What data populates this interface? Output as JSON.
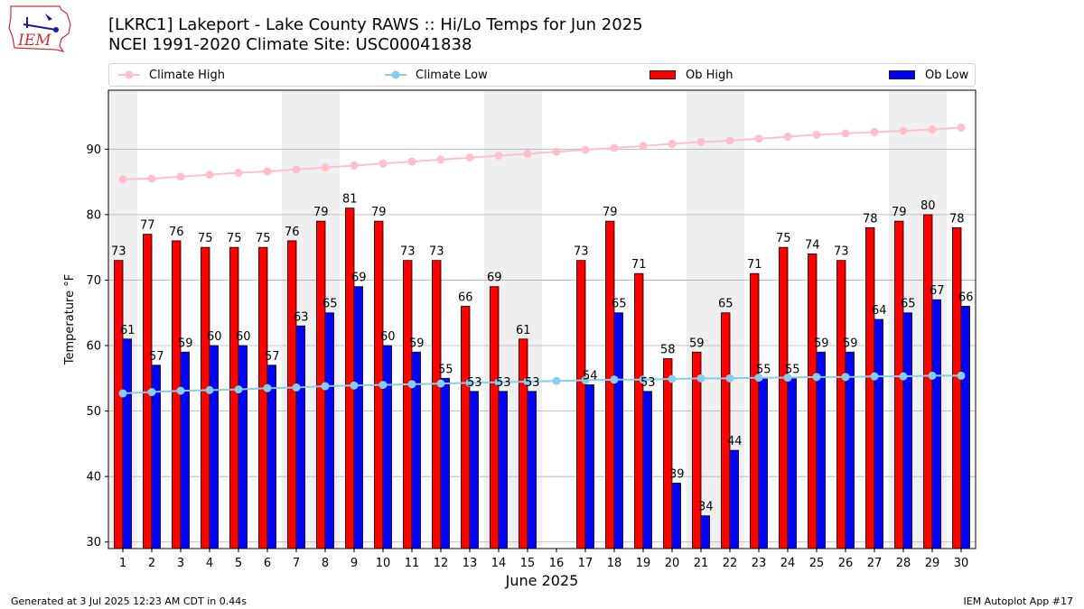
{
  "header": {
    "title_line1": "[LKRC1] Lakeport - Lake County RAWS :: Hi/Lo Temps for Jun 2025",
    "title_line2": "NCEI 1991-2020 Climate Site: USC00041838",
    "logo_text": "IEM"
  },
  "legend": {
    "climate_high": "Climate High",
    "climate_low": "Climate Low",
    "ob_high": "Ob High",
    "ob_low": "Ob Low"
  },
  "colors": {
    "ob_high": "#ff0000",
    "ob_low": "#0000ff",
    "climate_high": "#ffc0cb",
    "climate_low": "#87ceeb",
    "weekend_band": "#efefef",
    "grid": "#b0b0b0"
  },
  "chart_data": {
    "type": "bar",
    "xlabel": "June 2025",
    "ylabel": "Temperature °F",
    "ylim": [
      29,
      99
    ],
    "yticks": [
      30,
      40,
      50,
      60,
      70,
      80,
      90
    ],
    "grid": "horizontal",
    "legend_position": "top",
    "categories": [
      "1",
      "2",
      "3",
      "4",
      "5",
      "6",
      "7",
      "8",
      "9",
      "10",
      "11",
      "12",
      "13",
      "14",
      "15",
      "16",
      "17",
      "18",
      "19",
      "20",
      "21",
      "22",
      "23",
      "24",
      "25",
      "26",
      "27",
      "28",
      "29",
      "30"
    ],
    "weekend_days": [
      1,
      7,
      8,
      14,
      15,
      21,
      22,
      28,
      29
    ],
    "series": [
      {
        "name": "Ob High",
        "kind": "bar",
        "values": [
          73,
          77,
          76,
          75,
          75,
          75,
          76,
          79,
          81,
          79,
          73,
          73,
          66,
          69,
          61,
          null,
          73,
          79,
          71,
          58,
          59,
          65,
          71,
          75,
          74,
          73,
          78,
          79,
          80,
          78
        ]
      },
      {
        "name": "Ob Low",
        "kind": "bar",
        "values": [
          61,
          57,
          59,
          60,
          60,
          57,
          63,
          65,
          69,
          60,
          59,
          55,
          53,
          53,
          53,
          null,
          54,
          65,
          53,
          39,
          34,
          44,
          55,
          55,
          59,
          59,
          64,
          65,
          67,
          66
        ]
      },
      {
        "name": "Climate High",
        "kind": "line",
        "values": [
          85.4,
          85.5,
          85.8,
          86.1,
          86.4,
          86.6,
          86.9,
          87.2,
          87.5,
          87.8,
          88.1,
          88.4,
          88.7,
          89.0,
          89.3,
          89.6,
          89.9,
          90.2,
          90.5,
          90.8,
          91.1,
          91.3,
          91.6,
          91.9,
          92.2,
          92.4,
          92.6,
          92.8,
          93.0,
          93.3
        ]
      },
      {
        "name": "Climate Low",
        "kind": "line",
        "values": [
          52.7,
          52.9,
          53.1,
          53.2,
          53.3,
          53.5,
          53.6,
          53.8,
          53.9,
          54.0,
          54.1,
          54.2,
          54.3,
          54.4,
          54.5,
          54.6,
          54.7,
          54.8,
          54.8,
          54.9,
          55.0,
          55.0,
          55.1,
          55.1,
          55.2,
          55.2,
          55.3,
          55.3,
          55.4,
          55.4
        ]
      }
    ]
  },
  "footer": {
    "generated": "Generated at 3 Jul 2025 12:23 AM CDT in 0.44s",
    "app": "IEM Autoplot App #17"
  }
}
